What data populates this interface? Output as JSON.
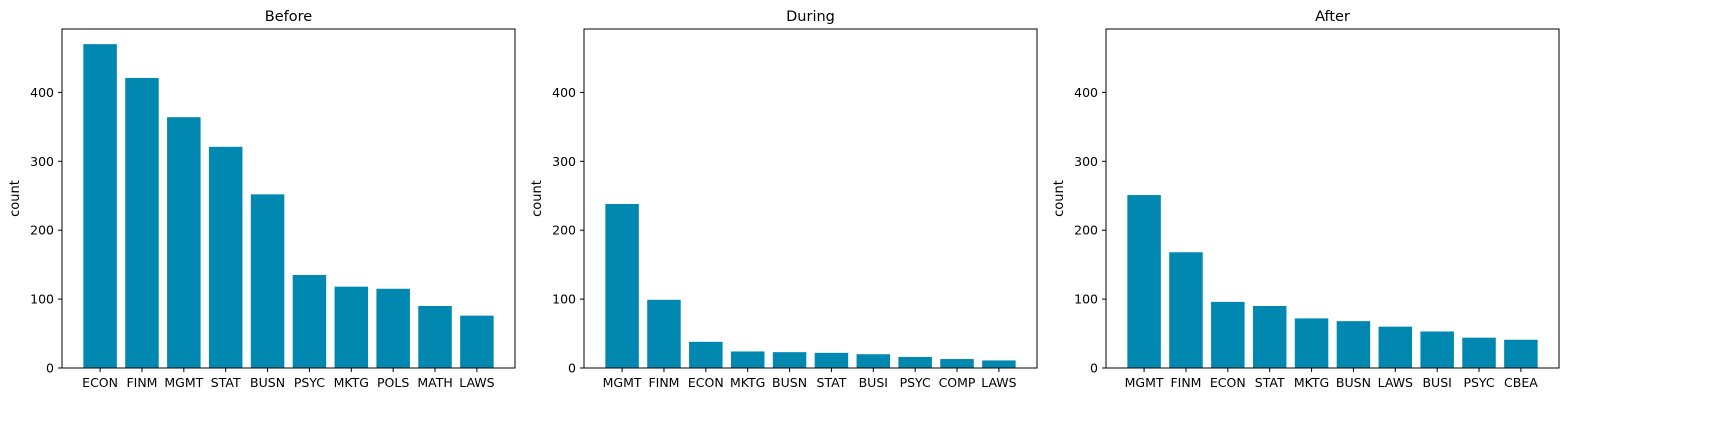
{
  "figure": {
    "bar_color": "#0088b0"
  },
  "chart_data": [
    {
      "type": "bar",
      "title": "Before",
      "xlabel": "",
      "ylabel": "count",
      "ylim": [
        0,
        492
      ],
      "yticks": [
        0,
        100,
        200,
        300,
        400
      ],
      "categories": [
        "ECON",
        "FINM",
        "MGMT",
        "STAT",
        "BUSN",
        "PSYC",
        "MKTG",
        "POLS",
        "MATH",
        "LAWS"
      ],
      "values": [
        470,
        421,
        364,
        321,
        252,
        135,
        118,
        115,
        90,
        76
      ]
    },
    {
      "type": "bar",
      "title": "During",
      "xlabel": "",
      "ylabel": "count",
      "ylim": [
        0,
        492
      ],
      "yticks": [
        0,
        100,
        200,
        300,
        400
      ],
      "categories": [
        "MGMT",
        "FINM",
        "ECON",
        "MKTG",
        "BUSN",
        "STAT",
        "BUSI",
        "PSYC",
        "COMP",
        "LAWS"
      ],
      "values": [
        238,
        99,
        38,
        24,
        23,
        22,
        20,
        16,
        13,
        11
      ]
    },
    {
      "type": "bar",
      "title": "After",
      "xlabel": "",
      "ylabel": "count",
      "ylim": [
        0,
        492
      ],
      "yticks": [
        0,
        100,
        200,
        300,
        400
      ],
      "categories": [
        "MGMT",
        "FINM",
        "ECON",
        "STAT",
        "MKTG",
        "BUSN",
        "LAWS",
        "BUSI",
        "PSYC",
        "CBEA"
      ],
      "values": [
        251,
        168,
        96,
        90,
        72,
        68,
        60,
        53,
        44,
        41
      ]
    }
  ]
}
